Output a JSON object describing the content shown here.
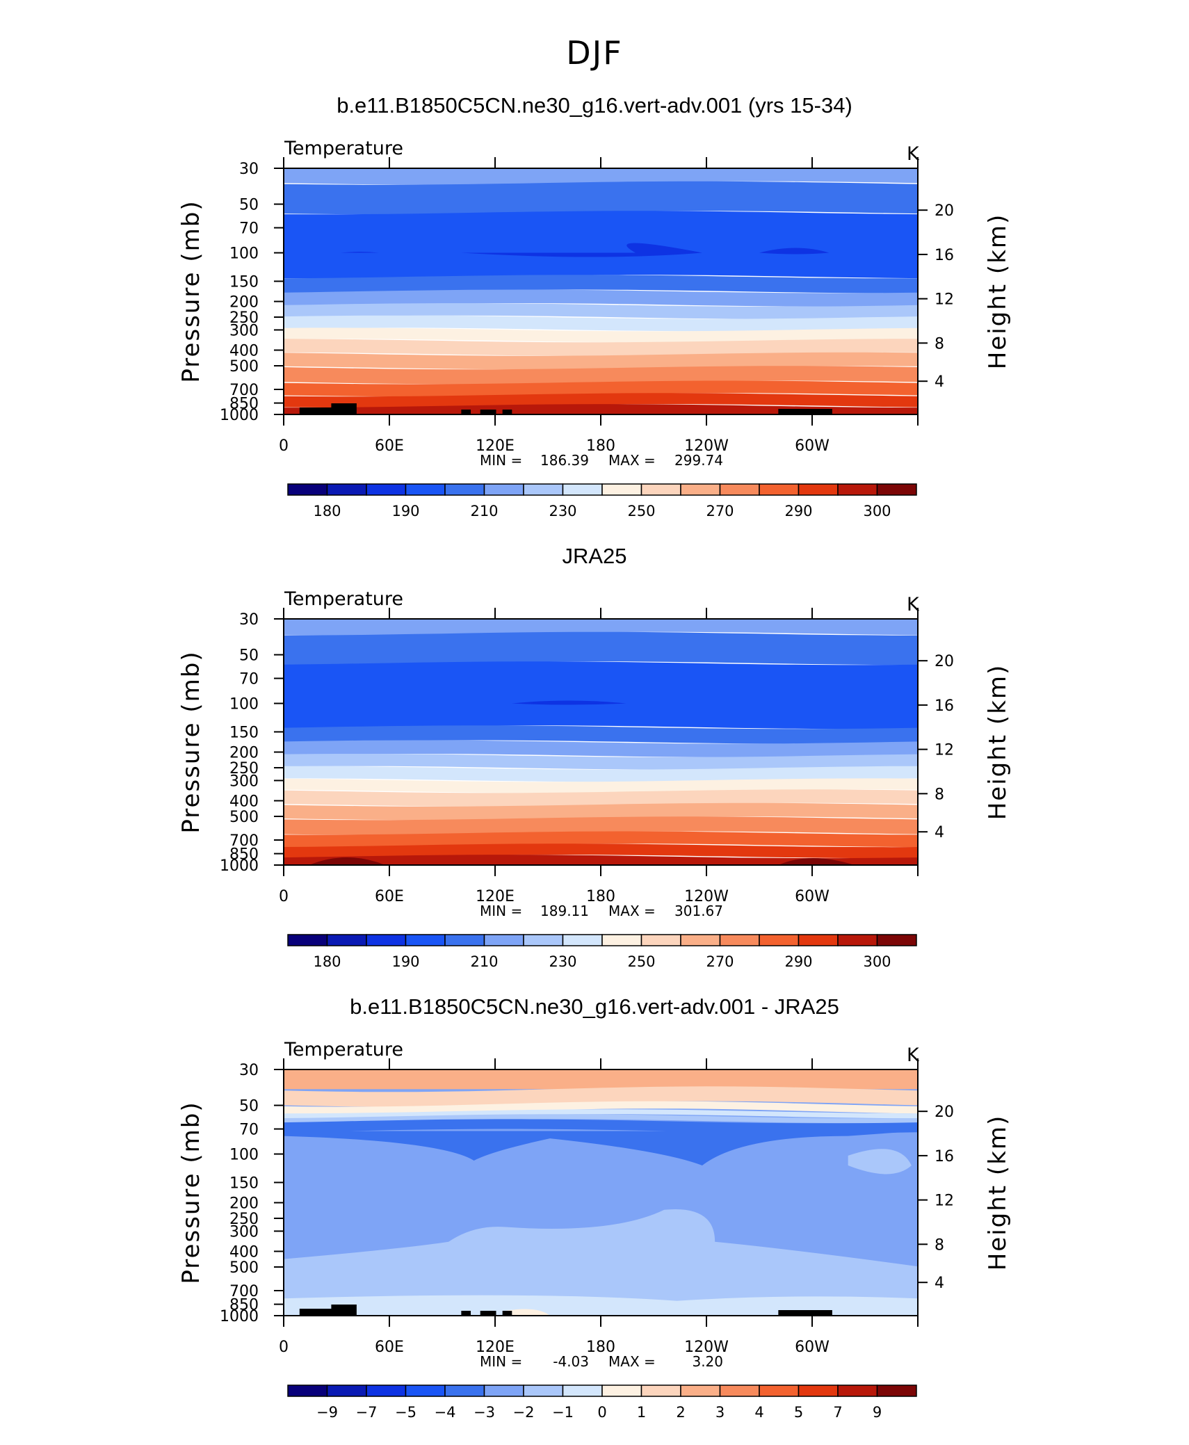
{
  "page_title": "DJF",
  "colors": {
    "temp_scale": [
      "#08007a",
      "#0a1ab4",
      "#0e33e3",
      "#1a55f5",
      "#3a72ee",
      "#7ea4f6",
      "#aac7fa",
      "#d3e6fc",
      "#fdf1e2",
      "#fcd5bd",
      "#faaf88",
      "#f78a5c",
      "#f3622f",
      "#e3380f",
      "#b8180a",
      "#7c0606"
    ],
    "land": "#000000"
  },
  "chart_data": [
    {
      "type": "contour",
      "title": "b.e11.B1850C5CN.ne30_g16.vert-adv.001 (yrs 15-34)",
      "variable": "Temperature",
      "units": "K",
      "ylabel": "Pressure (mb)",
      "ylabel_right": "Height (km)",
      "x_ticks": [
        "0",
        "60E",
        "120E",
        "180",
        "120W",
        "60W"
      ],
      "y_ticks": [
        "30",
        "50",
        "70",
        "100",
        "150",
        "200",
        "250",
        "300",
        "400",
        "500",
        "700",
        "850",
        "1000"
      ],
      "y_right_ticks": [
        "20",
        "16",
        "12",
        "8",
        "4"
      ],
      "min_label": "MIN =",
      "min": "186.39",
      "max_label": "MAX =",
      "max": "299.74",
      "colorbar_labels": [
        "180",
        "190",
        "210",
        "230",
        "250",
        "270",
        "290",
        "300"
      ]
    },
    {
      "type": "contour",
      "title": "JRA25",
      "variable": "Temperature",
      "units": "K",
      "ylabel": "Pressure (mb)",
      "ylabel_right": "Height (km)",
      "x_ticks": [
        "0",
        "60E",
        "120E",
        "180",
        "120W",
        "60W"
      ],
      "y_ticks": [
        "30",
        "50",
        "70",
        "100",
        "150",
        "200",
        "250",
        "300",
        "400",
        "500",
        "700",
        "850",
        "1000"
      ],
      "y_right_ticks": [
        "20",
        "16",
        "12",
        "8",
        "4"
      ],
      "min_label": "MIN =",
      "min": "189.11",
      "max_label": "MAX =",
      "max": "301.67",
      "colorbar_labels": [
        "180",
        "190",
        "210",
        "230",
        "250",
        "270",
        "290",
        "300"
      ]
    },
    {
      "type": "contour",
      "title": "b.e11.B1850C5CN.ne30_g16.vert-adv.001 - JRA25",
      "variable": "Temperature",
      "units": "K",
      "ylabel": "Pressure (mb)",
      "ylabel_right": "Height (km)",
      "x_ticks": [
        "0",
        "60E",
        "120E",
        "180",
        "120W",
        "60W"
      ],
      "y_ticks": [
        "30",
        "50",
        "70",
        "100",
        "150",
        "200",
        "250",
        "300",
        "400",
        "500",
        "700",
        "850",
        "1000"
      ],
      "y_right_ticks": [
        "20",
        "16",
        "12",
        "8",
        "4"
      ],
      "min_label": "MIN =",
      "min": "-4.03",
      "max_label": "MAX =",
      "max": "3.20",
      "colorbar_labels": [
        "-9",
        "-7",
        "-5",
        "-4",
        "-3",
        "-2",
        "-1",
        "0",
        "1",
        "2",
        "3",
        "4",
        "5",
        "7",
        "9"
      ]
    }
  ]
}
